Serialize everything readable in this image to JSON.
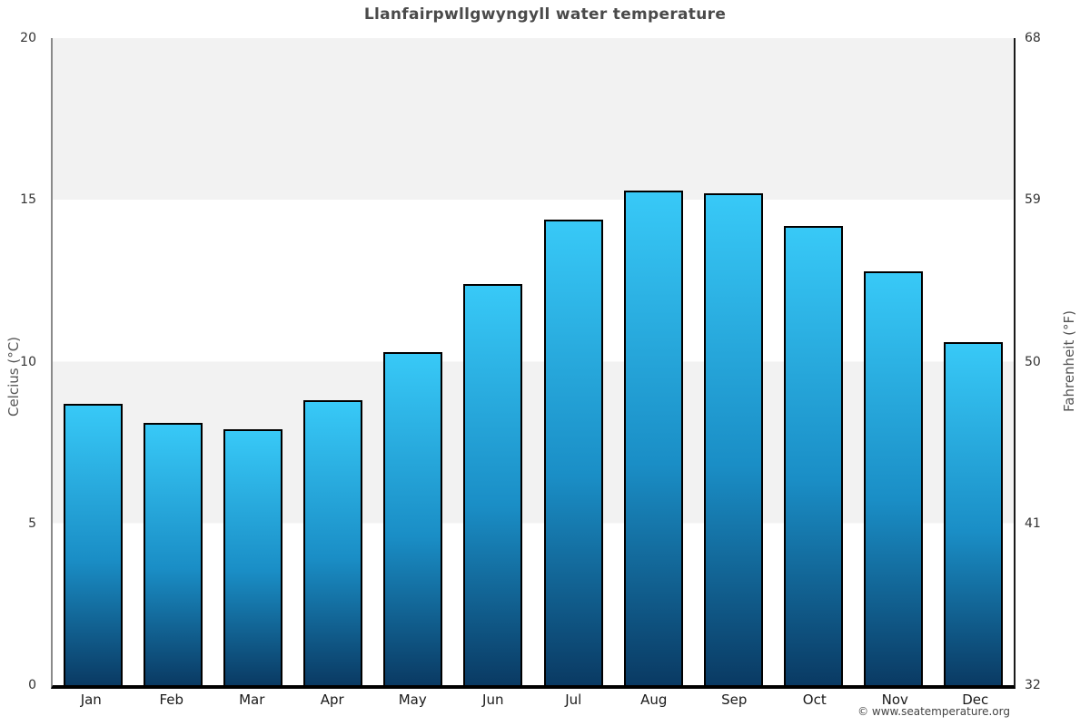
{
  "title": "Llanfairpwllgwyngyll water temperature",
  "credit": "© www.seatemperature.org",
  "chart_data": {
    "type": "bar",
    "title": "Llanfairpwllgwyngyll water temperature",
    "categories": [
      "Jan",
      "Feb",
      "Mar",
      "Apr",
      "May",
      "Jun",
      "Jul",
      "Aug",
      "Sep",
      "Oct",
      "Nov",
      "Dec"
    ],
    "values": [
      8.7,
      8.1,
      7.9,
      8.8,
      10.3,
      12.4,
      14.4,
      15.3,
      15.2,
      14.2,
      12.8,
      10.6
    ],
    "value_unit": "°C",
    "ylabel_left": "Celcius (°C)",
    "ylabel_right": "Fahrenheit (°F)",
    "ylim_celsius": [
      0,
      20
    ],
    "ylim_fahrenheit": [
      32,
      68
    ],
    "celsius_ticks": [
      20,
      15,
      10,
      5,
      0
    ],
    "fahrenheit_ticks": [
      68,
      59,
      50,
      41,
      32
    ],
    "grid": "horizontal-bands-5C",
    "legend": "none",
    "colors": {
      "band": "#f2f2f2",
      "bar_gradient_top": "#38c9f7",
      "bar_gradient_bottom": "#0a3a63",
      "bar_border": "#000000",
      "title_text": "#4a4a4a"
    }
  }
}
